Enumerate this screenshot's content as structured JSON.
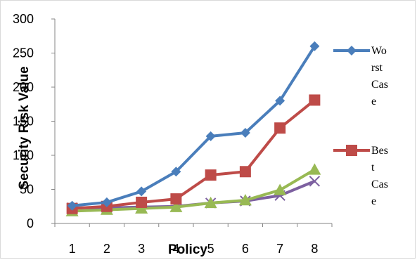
{
  "chart_data": {
    "type": "line",
    "title": "",
    "xlabel": "Policy",
    "ylabel": "Security Risk Value",
    "categories": [
      "1",
      "2",
      "3",
      "4",
      "5",
      "6",
      "7",
      "8"
    ],
    "yticks": [
      "0",
      "50",
      "100",
      "150",
      "200",
      "250",
      "300"
    ],
    "ylim": [
      0,
      300
    ],
    "grid": false,
    "legend_position": "right",
    "series": [
      {
        "name": "Worst Case",
        "legend_lines": [
          "Wo",
          "rst",
          "Cas",
          "e"
        ],
        "color": "#4a7ebb",
        "marker": "diamond",
        "values": [
          26,
          31,
          47,
          76,
          128,
          133,
          180,
          260
        ]
      },
      {
        "name": "Best Case",
        "legend_lines": [
          "Bes",
          "t",
          "Cas",
          "e"
        ],
        "color": "#be4b48",
        "marker": "square",
        "values": [
          22,
          25,
          31,
          36,
          71,
          76,
          140,
          181
        ]
      },
      {
        "name": "",
        "legend_lines": [],
        "color": "#98b954",
        "marker": "triangle",
        "values": [
          18,
          20,
          22,
          24,
          30,
          34,
          49,
          79
        ]
      },
      {
        "name": "",
        "legend_lines": [],
        "color": "#7d60a0",
        "marker": "x",
        "values": [
          23,
          23,
          24,
          25,
          30,
          33,
          41,
          62
        ]
      }
    ]
  }
}
